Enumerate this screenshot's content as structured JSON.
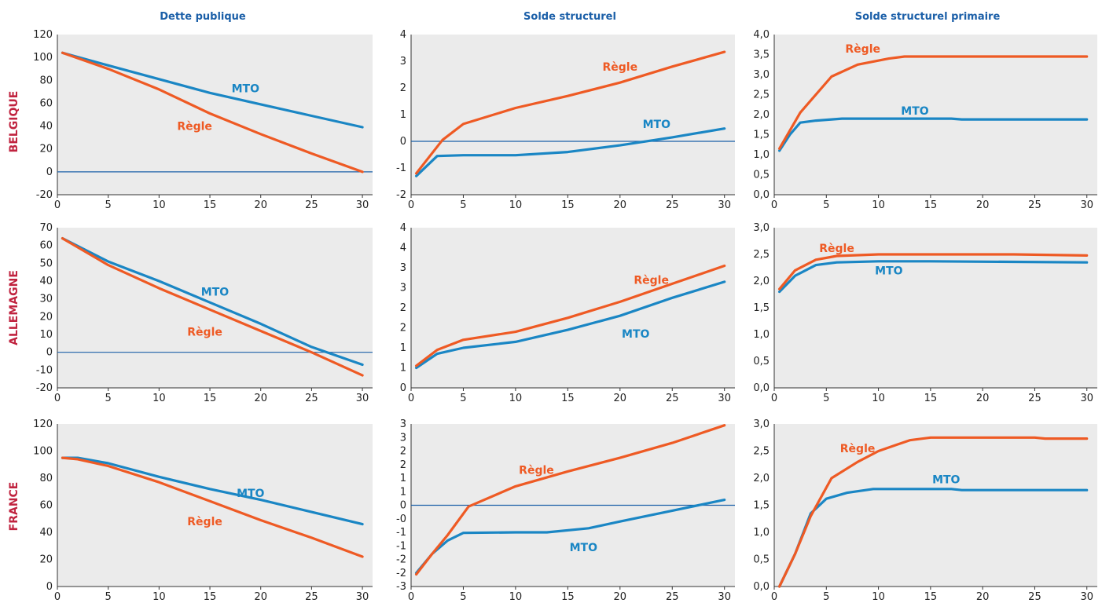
{
  "colors": {
    "mto": "#1a86c4",
    "regle": "#ee5a24",
    "plot_bg": "#ebebeb",
    "axis": "#1b5fa8",
    "column_title": "#1b5fa8",
    "row_title": "#c0233f"
  },
  "column_titles": [
    "Dette publique",
    "Solde structurel",
    "Solde structurel primaire"
  ],
  "row_titles": [
    "BELGIQUE",
    "ALLEMAGNE",
    "FRANCE"
  ],
  "chart_data": [
    {
      "type": "line",
      "row": 0,
      "col": 0,
      "title": "Dette publique",
      "xlim": [
        0,
        31
      ],
      "ylim": [
        -20,
        120
      ],
      "xticks": [
        0,
        5,
        10,
        15,
        20,
        25,
        30
      ],
      "yticks": [
        -20,
        0,
        20,
        40,
        60,
        80,
        100,
        120
      ],
      "yticklabels": [
        "-20",
        "0",
        "20",
        "40",
        "60",
        "80",
        "100",
        "120"
      ],
      "zero_line": true,
      "series": [
        {
          "name": "MTO",
          "x": [
            0.5,
            5,
            10,
            15,
            20,
            25,
            30
          ],
          "y": [
            104,
            93,
            81,
            69,
            59,
            49,
            39
          ]
        },
        {
          "name": "Règle",
          "x": [
            0.5,
            5,
            10,
            15,
            20,
            25,
            30
          ],
          "y": [
            104,
            90,
            72,
            51,
            33,
            16,
            0
          ]
        }
      ],
      "annotations": [
        {
          "text": "MTO",
          "x": 18.5,
          "y": 73,
          "series": "MTO"
        },
        {
          "text": "Règle",
          "x": 13.5,
          "y": 40,
          "series": "Règle"
        }
      ]
    },
    {
      "type": "line",
      "row": 0,
      "col": 1,
      "title": "Solde structurel",
      "xlim": [
        0,
        31
      ],
      "ylim": [
        -2,
        4
      ],
      "xticks": [
        0,
        5,
        10,
        15,
        20,
        25,
        30
      ],
      "yticks": [
        -2,
        -1,
        0,
        1,
        2,
        3,
        4
      ],
      "yticklabels": [
        "-2",
        "-1",
        "0",
        "1",
        "2",
        "3",
        "4"
      ],
      "zero_line": true,
      "series": [
        {
          "name": "MTO",
          "x": [
            0.5,
            2.5,
            5,
            10,
            15,
            20,
            25,
            30
          ],
          "y": [
            -1.3,
            -0.55,
            -0.52,
            -0.52,
            -0.4,
            -0.15,
            0.15,
            0.48
          ]
        },
        {
          "name": "Règle",
          "x": [
            0.5,
            3,
            5,
            10,
            15,
            20,
            25,
            30
          ],
          "y": [
            -1.2,
            0.05,
            0.65,
            1.25,
            1.7,
            2.2,
            2.8,
            3.35
          ]
        }
      ],
      "annotations": [
        {
          "text": "MTO",
          "x": 23.5,
          "y": 0.65,
          "series": "MTO"
        },
        {
          "text": "Règle",
          "x": 20,
          "y": 2.8,
          "series": "Règle"
        }
      ]
    },
    {
      "type": "line",
      "row": 0,
      "col": 2,
      "title": "Solde structurel primaire",
      "xlim": [
        0,
        31
      ],
      "ylim": [
        0,
        4
      ],
      "xticks": [
        0,
        5,
        10,
        15,
        20,
        25,
        30
      ],
      "yticks": [
        0,
        0.5,
        1,
        1.5,
        2,
        2.5,
        3,
        3.5,
        4
      ],
      "yticklabels": [
        "0,0",
        "0,5",
        "1,0",
        "1,5",
        "2,0",
        "2,5",
        "3,0",
        "3,5",
        "4,0"
      ],
      "zero_line": false,
      "series": [
        {
          "name": "MTO",
          "x": [
            0.5,
            1.5,
            2.5,
            4,
            6.5,
            10,
            15,
            17,
            18,
            25,
            30
          ],
          "y": [
            1.1,
            1.5,
            1.8,
            1.85,
            1.9,
            1.9,
            1.9,
            1.9,
            1.88,
            1.88,
            1.88
          ]
        },
        {
          "name": "Règle",
          "x": [
            0.5,
            2.5,
            5.5,
            8,
            11,
            12.5,
            30
          ],
          "y": [
            1.15,
            2.05,
            2.95,
            3.25,
            3.4,
            3.45,
            3.45
          ]
        }
      ],
      "annotations": [
        {
          "text": "MTO",
          "x": 13.5,
          "y": 2.1,
          "series": "MTO"
        },
        {
          "text": "Règle",
          "x": 8.5,
          "y": 3.65,
          "series": "Règle"
        }
      ]
    },
    {
      "type": "line",
      "row": 1,
      "col": 0,
      "title": "Dette publique",
      "xlim": [
        0,
        31
      ],
      "ylim": [
        -20,
        70
      ],
      "xticks": [
        0,
        5,
        10,
        15,
        20,
        25,
        30
      ],
      "yticks": [
        -20,
        -10,
        0,
        10,
        20,
        30,
        40,
        50,
        60,
        70
      ],
      "yticklabels": [
        "-20",
        "-10",
        "0",
        "10",
        "20",
        "30",
        "40",
        "50",
        "60",
        "70"
      ],
      "zero_line": true,
      "series": [
        {
          "name": "MTO",
          "x": [
            0.5,
            5,
            10,
            15,
            20,
            25,
            30
          ],
          "y": [
            64,
            51,
            40,
            28,
            16,
            3,
            -7
          ]
        },
        {
          "name": "Règle",
          "x": [
            0.5,
            5,
            10,
            15,
            20,
            25,
            30
          ],
          "y": [
            64,
            49,
            36,
            24,
            12,
            0,
            -13
          ]
        }
      ],
      "annotations": [
        {
          "text": "MTO",
          "x": 15.5,
          "y": 34,
          "series": "MTO"
        },
        {
          "text": "Règle",
          "x": 14.5,
          "y": 11.5,
          "series": "Règle"
        }
      ]
    },
    {
      "type": "line",
      "row": 1,
      "col": 1,
      "title": "Solde structurel",
      "xlim": [
        0,
        31
      ],
      "ylim": [
        0,
        4
      ],
      "xticks": [
        0,
        5,
        10,
        15,
        20,
        25,
        30
      ],
      "yticks": [
        0,
        0.5,
        1,
        1.5,
        2,
        2.5,
        3,
        3.5,
        4
      ],
      "yticklabels": [
        "0",
        "1",
        "1",
        "2",
        "2",
        "3",
        "3",
        "4",
        "4"
      ],
      "zero_line": false,
      "series": [
        {
          "name": "MTO",
          "x": [
            0.5,
            2.5,
            5,
            10,
            15,
            20,
            25,
            30
          ],
          "y": [
            0.5,
            0.85,
            1.0,
            1.15,
            1.45,
            1.8,
            2.25,
            2.65
          ]
        },
        {
          "name": "Règle",
          "x": [
            0.5,
            2.5,
            5,
            10,
            15,
            20,
            25,
            30
          ],
          "y": [
            0.55,
            0.95,
            1.2,
            1.4,
            1.75,
            2.15,
            2.6,
            3.05
          ]
        }
      ],
      "annotations": [
        {
          "text": "MTO",
          "x": 21.5,
          "y": 1.35,
          "series": "MTO"
        },
        {
          "text": "Règle",
          "x": 23,
          "y": 2.7,
          "series": "Règle"
        }
      ]
    },
    {
      "type": "line",
      "row": 1,
      "col": 2,
      "title": "Solde structurel primaire",
      "xlim": [
        0,
        31
      ],
      "ylim": [
        0,
        3
      ],
      "xticks": [
        0,
        5,
        10,
        15,
        20,
        25,
        30
      ],
      "yticks": [
        0,
        0.5,
        1,
        1.5,
        2,
        2.5,
        3
      ],
      "yticklabels": [
        "0,0",
        "0,5",
        "1,0",
        "1,5",
        "2,0",
        "2,5",
        "3,0"
      ],
      "zero_line": false,
      "series": [
        {
          "name": "MTO",
          "x": [
            0.5,
            2,
            4,
            6,
            10,
            15,
            30
          ],
          "y": [
            1.8,
            2.1,
            2.3,
            2.35,
            2.37,
            2.37,
            2.35
          ]
        },
        {
          "name": "Règle",
          "x": [
            0.5,
            2,
            4,
            6,
            10,
            15,
            20,
            23,
            30
          ],
          "y": [
            1.85,
            2.2,
            2.4,
            2.47,
            2.5,
            2.5,
            2.5,
            2.5,
            2.48
          ]
        }
      ],
      "annotations": [
        {
          "text": "MTO",
          "x": 11,
          "y": 2.2,
          "series": "MTO"
        },
        {
          "text": "Règle",
          "x": 6,
          "y": 2.62,
          "series": "Règle"
        }
      ]
    },
    {
      "type": "line",
      "row": 2,
      "col": 0,
      "title": "Dette publique",
      "xlim": [
        0,
        31
      ],
      "ylim": [
        0,
        120
      ],
      "xticks": [
        0,
        5,
        10,
        15,
        20,
        25,
        30
      ],
      "yticks": [
        0,
        20,
        40,
        60,
        80,
        100,
        120
      ],
      "yticklabels": [
        "0",
        "20",
        "40",
        "60",
        "80",
        "100",
        "120"
      ],
      "zero_line": false,
      "series": [
        {
          "name": "MTO",
          "x": [
            0.5,
            2,
            5,
            10,
            15,
            20,
            25,
            30
          ],
          "y": [
            95,
            95,
            91,
            81,
            72,
            64,
            55,
            46
          ]
        },
        {
          "name": "Règle",
          "x": [
            0.5,
            2,
            5,
            10,
            15,
            20,
            25,
            30
          ],
          "y": [
            95,
            94,
            89,
            77,
            63,
            49,
            36,
            22
          ]
        }
      ],
      "annotations": [
        {
          "text": "MTO",
          "x": 19,
          "y": 69,
          "series": "MTO"
        },
        {
          "text": "Règle",
          "x": 14.5,
          "y": 48,
          "series": "Règle"
        }
      ]
    },
    {
      "type": "line",
      "row": 2,
      "col": 1,
      "title": "Solde structurel",
      "xlim": [
        0,
        31
      ],
      "ylim": [
        -3,
        3
      ],
      "xticks": [
        0,
        5,
        10,
        15,
        20,
        25,
        30
      ],
      "yticks": [
        -3,
        -2.5,
        -2,
        -1.5,
        -1,
        -0.5,
        0,
        0.5,
        1,
        1.5,
        2,
        2.5,
        3
      ],
      "yticklabels": [
        "-3",
        "-2",
        "-2",
        "-1",
        "-1",
        "-0",
        "0",
        "1",
        "1",
        "2",
        "2",
        "3",
        "3"
      ],
      "zero_line": true,
      "series": [
        {
          "name": "MTO",
          "x": [
            0.5,
            2,
            3.5,
            5,
            10,
            13,
            17,
            20,
            25,
            30
          ],
          "y": [
            -2.5,
            -1.8,
            -1.3,
            -1.02,
            -1.0,
            -1.0,
            -0.85,
            -0.6,
            -0.2,
            0.2
          ]
        },
        {
          "name": "Règle",
          "x": [
            0.5,
            2,
            3.5,
            5.5,
            10,
            15,
            20,
            25,
            30
          ],
          "y": [
            -2.55,
            -1.8,
            -1.1,
            -0.05,
            0.7,
            1.25,
            1.75,
            2.3,
            2.95
          ]
        }
      ],
      "annotations": [
        {
          "text": "MTO",
          "x": 16.5,
          "y": -1.55,
          "series": "MTO"
        },
        {
          "text": "Règle",
          "x": 12,
          "y": 1.3,
          "series": "Règle"
        }
      ]
    },
    {
      "type": "line",
      "row": 2,
      "col": 2,
      "title": "Solde structurel primaire",
      "xlim": [
        0,
        31
      ],
      "ylim": [
        0,
        3
      ],
      "xticks": [
        0,
        5,
        10,
        15,
        20,
        25,
        30
      ],
      "yticks": [
        0,
        0.5,
        1,
        1.5,
        2,
        2.5,
        3
      ],
      "yticklabels": [
        "0,0",
        "0,5",
        "1,0",
        "1,5",
        "2,0",
        "2,5",
        "3,0"
      ],
      "zero_line": false,
      "series": [
        {
          "name": "MTO",
          "x": [
            0.5,
            2,
            3.5,
            5,
            7,
            9.5,
            15,
            17,
            18,
            30
          ],
          "y": [
            0.0,
            0.6,
            1.35,
            1.62,
            1.73,
            1.8,
            1.8,
            1.8,
            1.78,
            1.78
          ]
        },
        {
          "name": "Règle",
          "x": [
            0.5,
            2,
            3.5,
            5.5,
            8,
            10,
            13,
            15,
            25,
            26,
            30
          ],
          "y": [
            0.0,
            0.6,
            1.3,
            2.0,
            2.3,
            2.5,
            2.7,
            2.75,
            2.75,
            2.73,
            2.73
          ]
        }
      ],
      "annotations": [
        {
          "text": "MTO",
          "x": 16.5,
          "y": 1.98,
          "series": "MTO"
        },
        {
          "text": "Règle",
          "x": 8,
          "y": 2.55,
          "series": "Règle"
        }
      ]
    }
  ]
}
